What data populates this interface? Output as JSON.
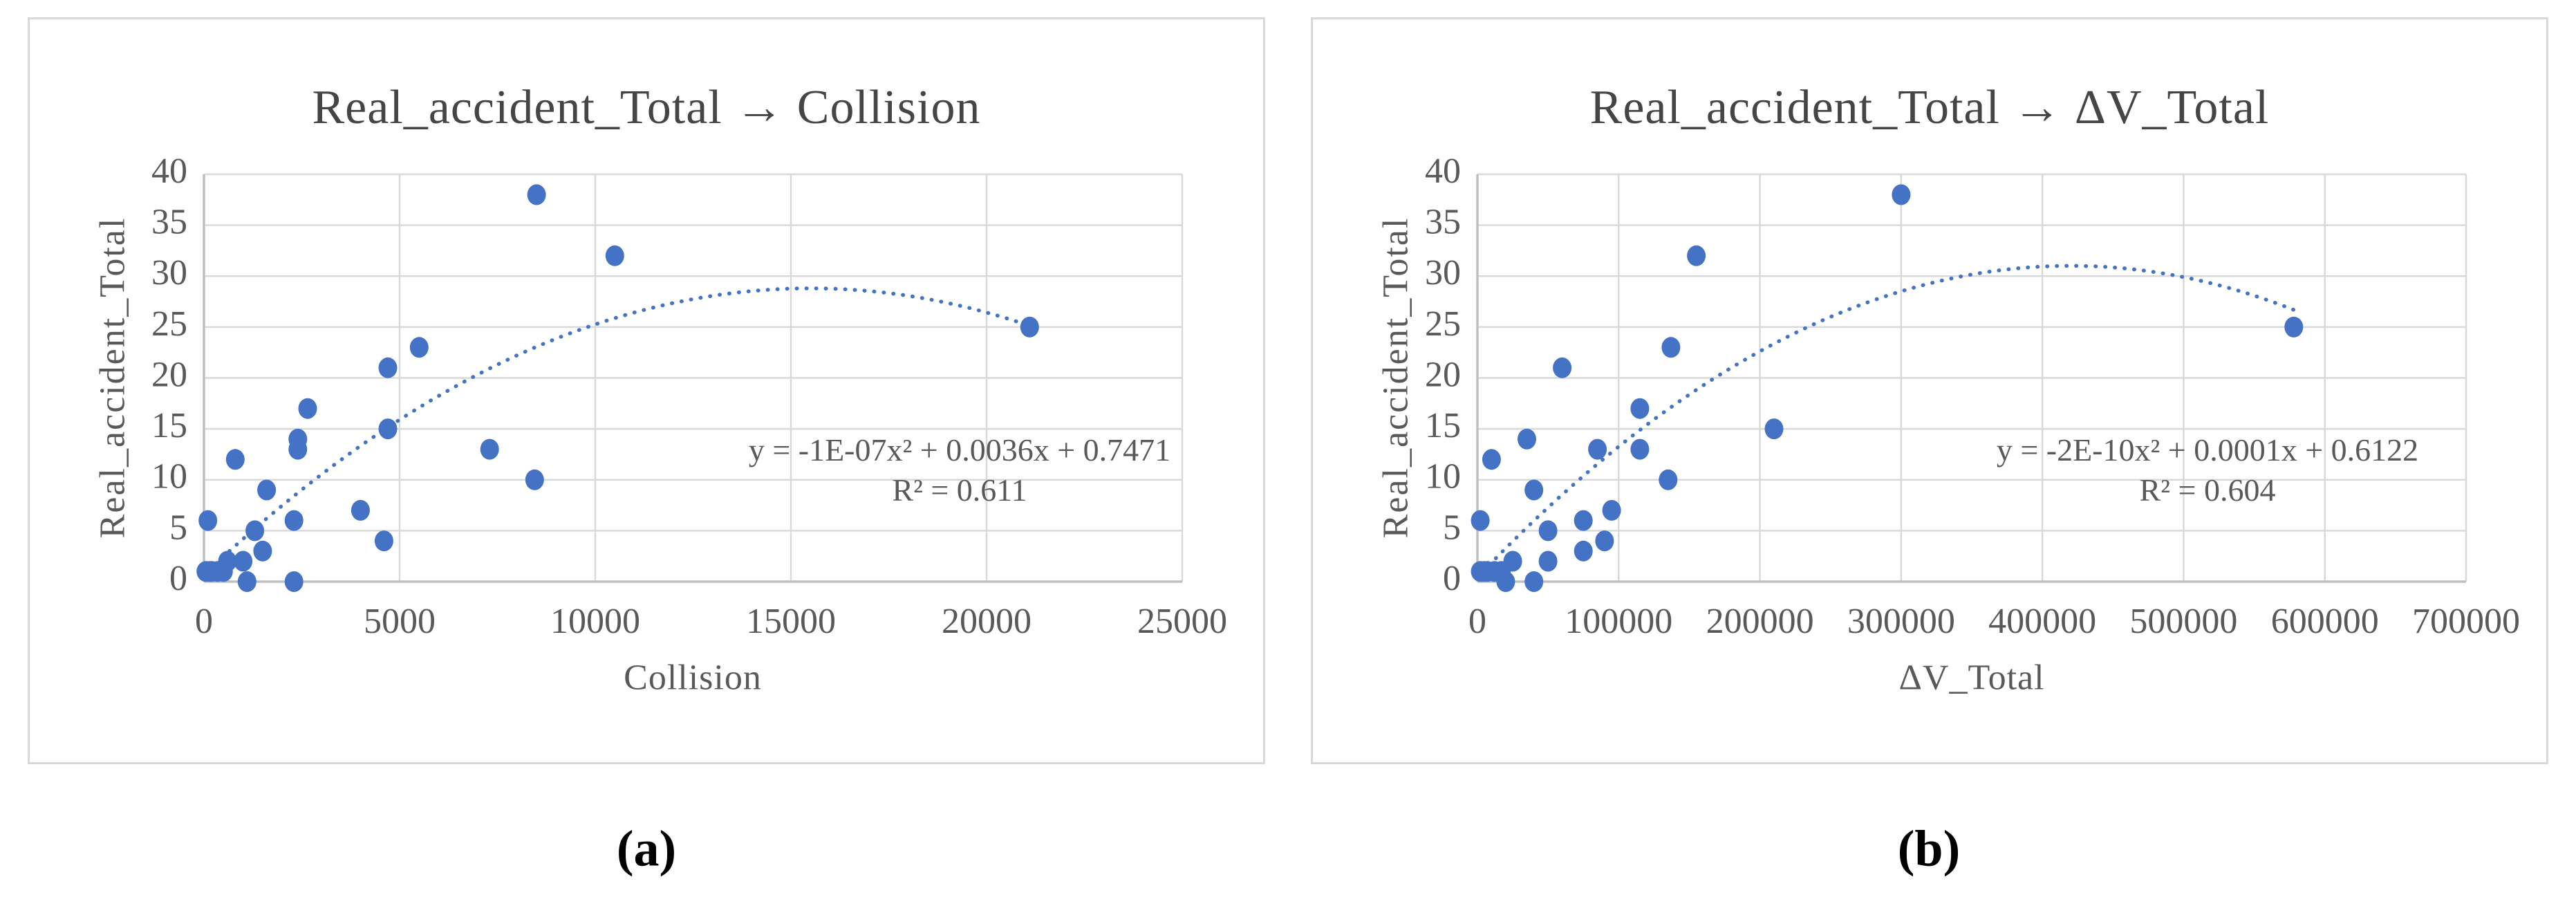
{
  "figure_labels": {
    "a": "(a)",
    "b": "(b)"
  },
  "colors": {
    "marker": "#4472C4",
    "trendline": "#4472C4",
    "gridline": "#D9D9D9",
    "axis_line": "#BFBFBF",
    "tick_text": "#595959",
    "title_text": "#454545",
    "chart_border": "#D9D9D9",
    "caption_text": "#000000"
  },
  "chart_data": [
    {
      "type": "scatter",
      "title": "Real_accident_Total → Collision",
      "xlabel": "Collision",
      "ylabel": "Real_accident_Total",
      "xlim": [
        0,
        25000
      ],
      "ylim": [
        0,
        40
      ],
      "xticks": [
        0,
        5000,
        10000,
        15000,
        20000,
        25000
      ],
      "yticks": [
        0,
        5,
        10,
        15,
        20,
        25,
        30,
        35,
        40
      ],
      "grid": true,
      "legend": "none",
      "equation": "y = -1E-07x² + 0.0036x + 0.7471",
      "equation_r2": "R² = 0.611",
      "points": [
        [
          8500,
          38
        ],
        [
          10500,
          32
        ],
        [
          21100,
          25
        ],
        [
          5500,
          23
        ],
        [
          4700,
          21
        ],
        [
          2650,
          17
        ],
        [
          4700,
          15
        ],
        [
          2400,
          14
        ],
        [
          2400,
          13
        ],
        [
          7300,
          13
        ],
        [
          800,
          12
        ],
        [
          8450,
          10
        ],
        [
          1600,
          9
        ],
        [
          4000,
          7
        ],
        [
          100,
          6
        ],
        [
          2300,
          6
        ],
        [
          1300,
          5
        ],
        [
          4600,
          4
        ],
        [
          1500,
          3
        ],
        [
          1000,
          2
        ],
        [
          600,
          2
        ],
        [
          50,
          1
        ],
        [
          200,
          1
        ],
        [
          350,
          1
        ],
        [
          500,
          1
        ],
        [
          150,
          1
        ],
        [
          1100,
          0
        ],
        [
          2300,
          0
        ]
      ],
      "trend": {
        "style": "dotted",
        "a": -1.17e-07,
        "b": 0.003627,
        "c": 0.69,
        "x_start": 650,
        "x_end": 21100
      }
    },
    {
      "type": "scatter",
      "title": "Real_accident_Total → ΔV_Total",
      "xlabel": "ΔV_Total",
      "ylabel": "Real_accident_Total",
      "xlim": [
        0,
        700000
      ],
      "ylim": [
        0,
        40
      ],
      "xticks": [
        0,
        100000,
        200000,
        300000,
        400000,
        500000,
        600000,
        700000
      ],
      "yticks": [
        0,
        5,
        10,
        15,
        20,
        25,
        30,
        35,
        40
      ],
      "grid": true,
      "legend": "none",
      "equation": "y = -2E-10x² + 0.0001x + 0.6122",
      "equation_r2": "R² = 0.604",
      "points": [
        [
          300000,
          38
        ],
        [
          155000,
          32
        ],
        [
          578000,
          25
        ],
        [
          137000,
          23
        ],
        [
          60000,
          21
        ],
        [
          115000,
          17
        ],
        [
          210000,
          15
        ],
        [
          35000,
          14
        ],
        [
          85000,
          13
        ],
        [
          115000,
          13
        ],
        [
          10000,
          12
        ],
        [
          135000,
          10
        ],
        [
          40000,
          9
        ],
        [
          95000,
          7
        ],
        [
          2000,
          6
        ],
        [
          75000,
          6
        ],
        [
          50000,
          5
        ],
        [
          90000,
          4
        ],
        [
          75000,
          3
        ],
        [
          50000,
          2
        ],
        [
          25000,
          2
        ],
        [
          2000,
          1
        ],
        [
          7000,
          1
        ],
        [
          12000,
          1
        ],
        [
          17000,
          1
        ],
        [
          5000,
          1
        ],
        [
          20000,
          0
        ],
        [
          40000,
          0
        ]
      ],
      "trend": {
        "style": "dotted",
        "a": -1.733e-10,
        "b": 0.0001456,
        "c": 0.43,
        "x_start": 13000,
        "x_end": 578000
      }
    }
  ]
}
